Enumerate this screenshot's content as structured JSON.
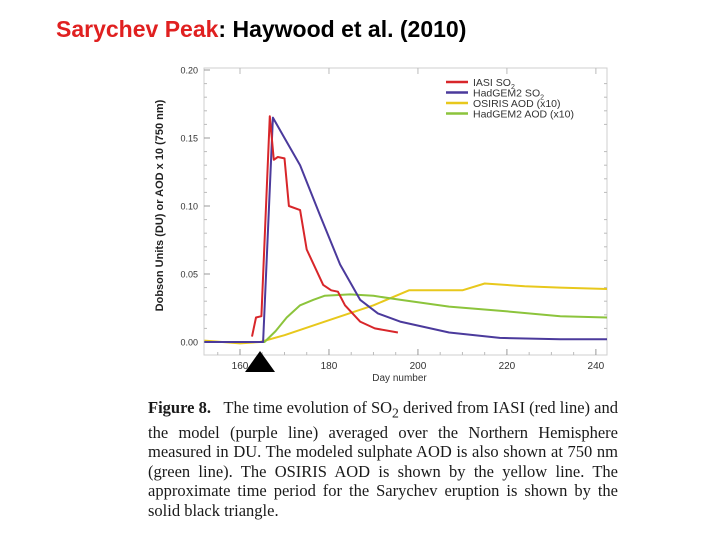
{
  "slide": {
    "title_accent": "Sarychev Peak",
    "title_rest": ": Haywood et al. (2010)",
    "accent_color": "#e02020"
  },
  "caption": {
    "figure_label": "Figure 8.",
    "text_1": "The time evolution of SO",
    "sub_1": "2",
    "text_2": " derived from IASI (red line) and the model (purple line) averaged over the Northern Hemisphere measured in DU. The modeled sulphate AOD is also shown at 750 nm (green line). The OSIRIS AOD is shown by the yellow line. The approximate time period for the Sarychev eruption is shown by the solid black triangle."
  },
  "chart_data": {
    "type": "line",
    "title": "",
    "xlabel": "Day number",
    "ylabel": "Dobson Units (DU) or AOD x 10 (750 nm)",
    "xlim": [
      152,
      242.5
    ],
    "ylim": [
      0.0,
      0.2
    ],
    "xticks": [
      160,
      180,
      200,
      220,
      240
    ],
    "yticks": [
      "0.00",
      "0.05",
      "0.10",
      "0.15",
      "0.20"
    ],
    "grid": false,
    "legend_position": "upper right",
    "annotations": [
      {
        "type": "triangle",
        "color": "#000000",
        "x": 164.5,
        "label": "Sarychev eruption period"
      }
    ],
    "series": [
      {
        "name": "IASI SO2",
        "color": "#d8262a",
        "x": [
          162.7,
          163.6,
          164.8,
          166.7,
          167.6,
          168.5,
          170.0,
          171.0,
          173.5,
          175.0,
          178.7,
          180.5,
          182.0,
          183.6,
          187.0,
          190.3,
          195.5
        ],
        "y": [
          0.004,
          0.018,
          0.019,
          0.166,
          0.134,
          0.136,
          0.135,
          0.1,
          0.097,
          0.068,
          0.042,
          0.038,
          0.037,
          0.027,
          0.015,
          0.01,
          0.007
        ]
      },
      {
        "name": "HadGEM2 SO2",
        "color": "#4b3a9c",
        "x": [
          152,
          164.5,
          165.2,
          167.4,
          170.0,
          173.5,
          178.0,
          182.5,
          187.0,
          191.0,
          196.0,
          207.0,
          218.4,
          232.0,
          242.5
        ],
        "y": [
          0.0,
          0.0,
          0.0,
          0.165,
          0.15,
          0.13,
          0.093,
          0.057,
          0.031,
          0.021,
          0.015,
          0.007,
          0.003,
          0.002,
          0.002
        ]
      },
      {
        "name": "OSIRIS AOD (x10)",
        "color": "#e8c81c",
        "x": [
          152,
          156,
          160,
          164.5,
          170,
          180,
          190,
          198,
          205,
          210,
          215,
          224,
          232,
          242.5
        ],
        "y": [
          0.001,
          0.0,
          -0.001,
          0.0,
          0.005,
          0.016,
          0.027,
          0.038,
          0.038,
          0.038,
          0.043,
          0.041,
          0.04,
          0.039
        ]
      },
      {
        "name": "HadGEM2 AOD (x10)",
        "color": "#8cc43c",
        "x": [
          152,
          165.5,
          168,
          170.5,
          173.5,
          176.5,
          179.0,
          184.7,
          190,
          196.0,
          207.0,
          218.4,
          232.0,
          242.5
        ],
        "y": [
          0.0,
          0.0,
          0.008,
          0.018,
          0.027,
          0.031,
          0.034,
          0.035,
          0.034,
          0.031,
          0.026,
          0.023,
          0.019,
          0.018
        ]
      }
    ]
  }
}
